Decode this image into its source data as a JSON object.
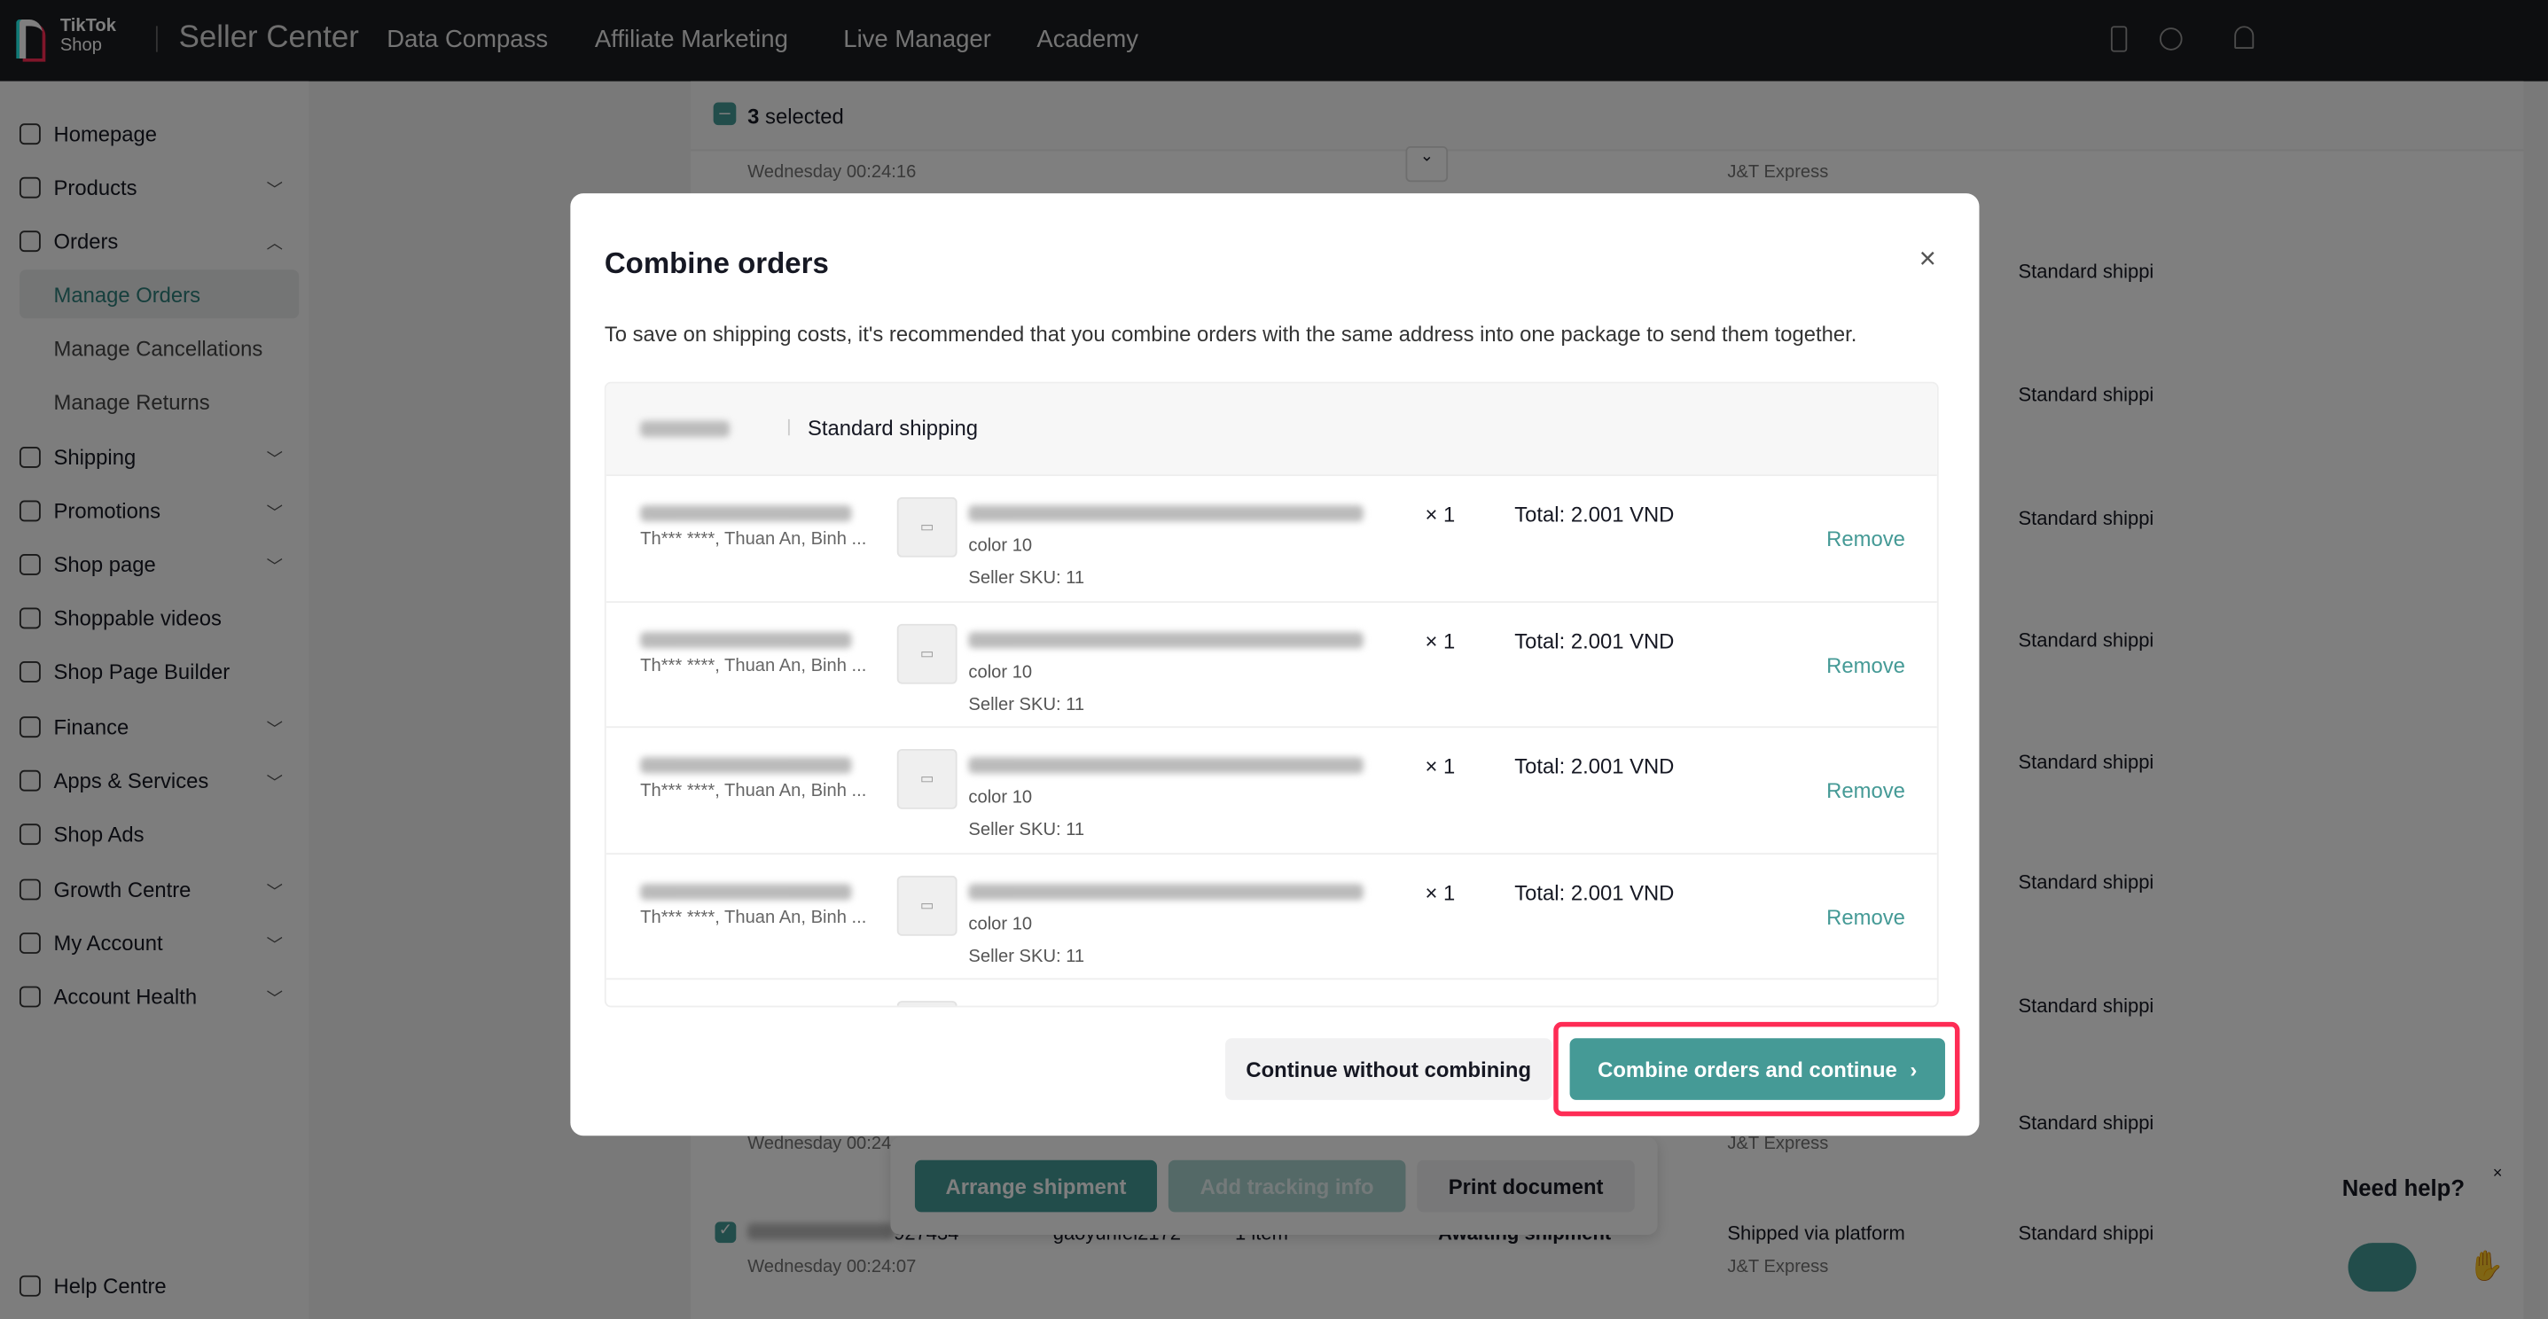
{
  "header": {
    "logo_line1": "TikTok",
    "logo_line2": "Shop",
    "title": "Seller Center",
    "nav": [
      "Data Compass",
      "Affiliate Marketing",
      "Live Manager",
      "Academy"
    ]
  },
  "sidebar": {
    "items": [
      {
        "label": "Homepage",
        "icon": "home-icon"
      },
      {
        "label": "Products",
        "icon": "box-icon",
        "expand": "v"
      },
      {
        "label": "Orders",
        "icon": "orders-icon",
        "expand": "^"
      },
      {
        "label": "Manage Orders",
        "sub": true,
        "selected": true
      },
      {
        "label": "Manage Cancellations",
        "sub": true
      },
      {
        "label": "Manage Returns",
        "sub": true
      },
      {
        "label": "Shipping",
        "icon": "truck-icon",
        "expand": "v"
      },
      {
        "label": "Promotions",
        "icon": "megaphone-icon",
        "expand": "v"
      },
      {
        "label": "Shop page",
        "icon": "store-icon",
        "expand": "v"
      },
      {
        "label": "Shoppable videos",
        "icon": "video-icon"
      },
      {
        "label": "Shop Page Builder",
        "icon": "builder-icon"
      },
      {
        "label": "Finance",
        "icon": "finance-icon",
        "expand": "v"
      },
      {
        "label": "Apps & Services",
        "icon": "apps-icon",
        "expand": "v"
      },
      {
        "label": "Shop Ads",
        "icon": "ads-icon"
      },
      {
        "label": "Growth Centre",
        "icon": "growth-icon",
        "expand": "v"
      },
      {
        "label": "My Account",
        "icon": "user-icon",
        "expand": "v"
      },
      {
        "label": "Account Health",
        "icon": "trophy-icon",
        "expand": "v"
      }
    ],
    "help": "Help Centre"
  },
  "background": {
    "selected_count": "3",
    "selected_label": "selected",
    "time_top": "Wednesday 00:24:16",
    "carrier": "J&T Express",
    "shipping": "Standard shippi",
    "time_mid": "Wednesday 00:24",
    "last_row": {
      "id_tail": "927434",
      "buyer": "gaoyunfei2172",
      "items": "1 item",
      "status": "Awaiting shipment",
      "method": "Shipped via platform",
      "time": "Wednesday 00:24:07"
    },
    "actions": {
      "arrange": "Arrange shipment",
      "tracking": "Add tracking info",
      "print": "Print document"
    }
  },
  "modal": {
    "title": "Combine orders",
    "description": "To save on shipping costs, it's recommended that you combine orders with the same address into one package to send them together.",
    "group_shipping": "Standard shipping",
    "orders": [
      {
        "address": "Th*** ****, Thuan An, Binh ...",
        "variant": "color 10",
        "sku": "Seller SKU: 11",
        "qty": "× 1",
        "total": "Total: 2.001 VND",
        "remove": "Remove"
      },
      {
        "address": "Th*** ****, Thuan An, Binh ...",
        "variant": "color 10",
        "sku": "Seller SKU: 11",
        "qty": "× 1",
        "total": "Total: 2.001 VND",
        "remove": "Remove"
      },
      {
        "address": "Th*** ****, Thuan An, Binh ...",
        "variant": "color 10",
        "sku": "Seller SKU: 11",
        "qty": "× 1",
        "total": "Total: 2.001 VND",
        "remove": "Remove"
      },
      {
        "address": "Th*** ****, Thuan An, Binh ...",
        "variant": "color 10",
        "sku": "Seller SKU: 11",
        "qty": "× 1",
        "total": "Total: 2.001 VND",
        "remove": "Remove"
      }
    ],
    "secondary_button": "Continue without combining",
    "primary_button": "Combine orders and continue",
    "primary_chevron": "›"
  },
  "help_widget": {
    "label": "Need help?",
    "close": "×"
  },
  "colors": {
    "accent": "#459a96",
    "highlight": "#fe2c55",
    "header": "#1b1c20"
  }
}
